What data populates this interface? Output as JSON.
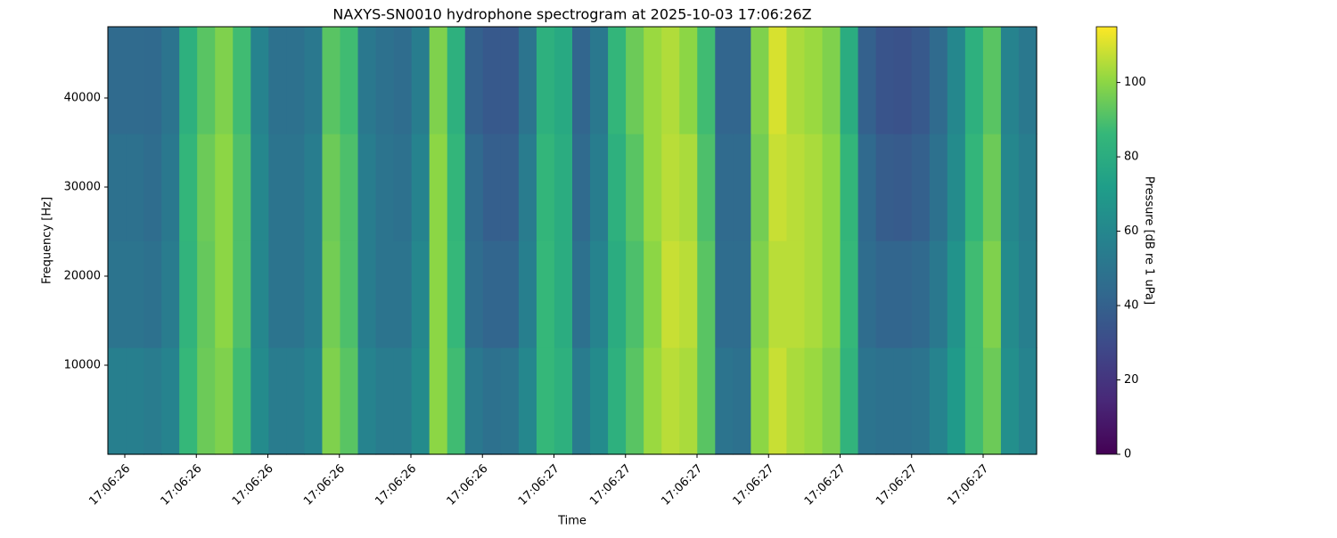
{
  "chart_data": {
    "type": "heatmap",
    "title": "NAXYS-SN0010 hydrophone spectrogram at 2025-10-03 17:06:26Z",
    "x_label": "Time",
    "y_label": "Frequency [Hz]",
    "xticks": [
      "17:06:26",
      "17:06:26",
      "17:06:26",
      "17:06:26",
      "17:06:26",
      "17:06:26",
      "17:06:27",
      "17:06:27",
      "17:06:27",
      "17:06:27",
      "17:06:27",
      "17:06:27",
      "17:06:27"
    ],
    "ylim": [
      0,
      48000
    ],
    "yticks": [
      10000,
      20000,
      30000,
      40000
    ],
    "z": [
      [
        56,
        56,
        54,
        58,
        86,
        95,
        98,
        88,
        62,
        54,
        54,
        58,
        98,
        92,
        58,
        54,
        54,
        62,
        100,
        88,
        52,
        48,
        50,
        60,
        86,
        82,
        54,
        62,
        82,
        92,
        102,
        106,
        104,
        92,
        50,
        48,
        100,
        108,
        104,
        102,
        98,
        84,
        50,
        48,
        48,
        50,
        58,
        70,
        88,
        95,
        64,
        58
      ],
      [
        50,
        50,
        48,
        54,
        84,
        94,
        100,
        90,
        60,
        50,
        50,
        55,
        96,
        90,
        55,
        50,
        50,
        60,
        100,
        86,
        46,
        42,
        42,
        56,
        86,
        80,
        48,
        58,
        80,
        90,
        100,
        108,
        106,
        92,
        46,
        46,
        98,
        106,
        106,
        104,
        100,
        86,
        46,
        42,
        42,
        44,
        52,
        66,
        88,
        98,
        62,
        56
      ],
      [
        48,
        48,
        46,
        52,
        85,
        95,
        100,
        90,
        60,
        50,
        50,
        55,
        95,
        90,
        55,
        50,
        48,
        58,
        100,
        85,
        44,
        39,
        39,
        54,
        85,
        80,
        45,
        55,
        82,
        92,
        102,
        106,
        104,
        90,
        45,
        45,
        96,
        108,
        106,
        104,
        100,
        85,
        44,
        38,
        37,
        40,
        48,
        62,
        85,
        95,
        60,
        55
      ],
      [
        45,
        45,
        44,
        50,
        82,
        92,
        98,
        88,
        58,
        48,
        48,
        52,
        92,
        88,
        52,
        48,
        46,
        55,
        98,
        82,
        40,
        36,
        36,
        50,
        82,
        78,
        42,
        52,
        85,
        95,
        102,
        105,
        100,
        88,
        42,
        42,
        98,
        110,
        104,
        102,
        98,
        80,
        40,
        34,
        33,
        36,
        45,
        60,
        82,
        92,
        58,
        52
      ]
    ],
    "colorbar": {
      "label": "Pressure [dB re 1 uPa]",
      "zlim": [
        0,
        115
      ],
      "ticks": [
        0,
        20,
        40,
        60,
        80,
        100
      ],
      "colormap": "viridis"
    }
  }
}
